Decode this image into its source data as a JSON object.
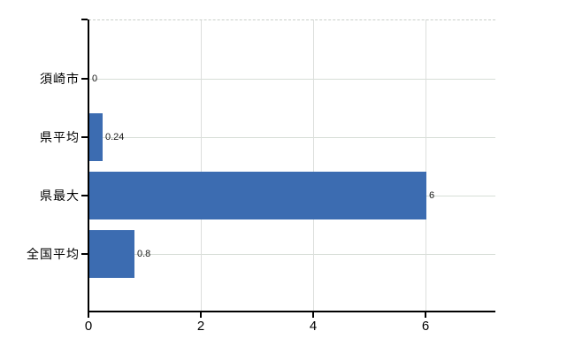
{
  "chart_data": {
    "type": "bar",
    "orientation": "horizontal",
    "title": "",
    "xlabel": "",
    "ylabel": "",
    "categories": [
      "須崎市",
      "県平均",
      "県最大",
      "全国平均"
    ],
    "values": [
      0,
      0.24,
      6,
      0.8
    ],
    "value_labels": [
      "0",
      "0.24",
      "6",
      "0.8"
    ],
    "xticks": [
      0,
      2,
      4,
      6
    ],
    "xtick_labels": [
      "0",
      "2",
      "4",
      "6"
    ],
    "xlim": [
      0,
      7.24
    ],
    "grid": true,
    "legend": false,
    "colors": {
      "bar": "#3c6cb1",
      "gridline_h": "#d7ded7",
      "gridline_v": "#dcdedc",
      "axis": "#000000",
      "text": "#000000",
      "value_text": "#1a1a1a",
      "background": "#ffffff"
    }
  }
}
